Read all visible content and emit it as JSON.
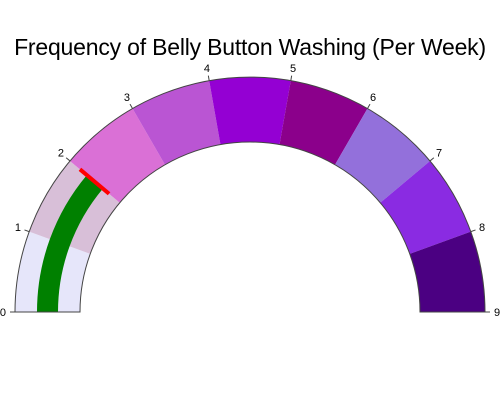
{
  "chart_data": {
    "type": "gauge",
    "title": "Frequency of Belly Button Washing (Per Week)",
    "axis_range": [
      0,
      9
    ],
    "tick_values": [
      0,
      1,
      2,
      3,
      4,
      5,
      6,
      7,
      8,
      9
    ],
    "tick_labels": [
      "0",
      "1",
      "2",
      "3",
      "4",
      "5",
      "6",
      "7",
      "8",
      "9"
    ],
    "value": 2,
    "bar_color": "#008000",
    "threshold": {
      "value": 2,
      "color": "#ff0000"
    },
    "steps": [
      {
        "range": [
          0,
          1
        ],
        "color": "#e6e6fa"
      },
      {
        "range": [
          1,
          2
        ],
        "color": "#d8bfd8"
      },
      {
        "range": [
          2,
          3
        ],
        "color": "#da70d6"
      },
      {
        "range": [
          3,
          4
        ],
        "color": "#ba55d3"
      },
      {
        "range": [
          4,
          5
        ],
        "color": "#9400d3"
      },
      {
        "range": [
          5,
          6
        ],
        "color": "#8b008b"
      },
      {
        "range": [
          6,
          7
        ],
        "color": "#9370db"
      },
      {
        "range": [
          7,
          8
        ],
        "color": "#8a2be2"
      },
      {
        "range": [
          8,
          9
        ],
        "color": "#4b0082"
      }
    ]
  }
}
